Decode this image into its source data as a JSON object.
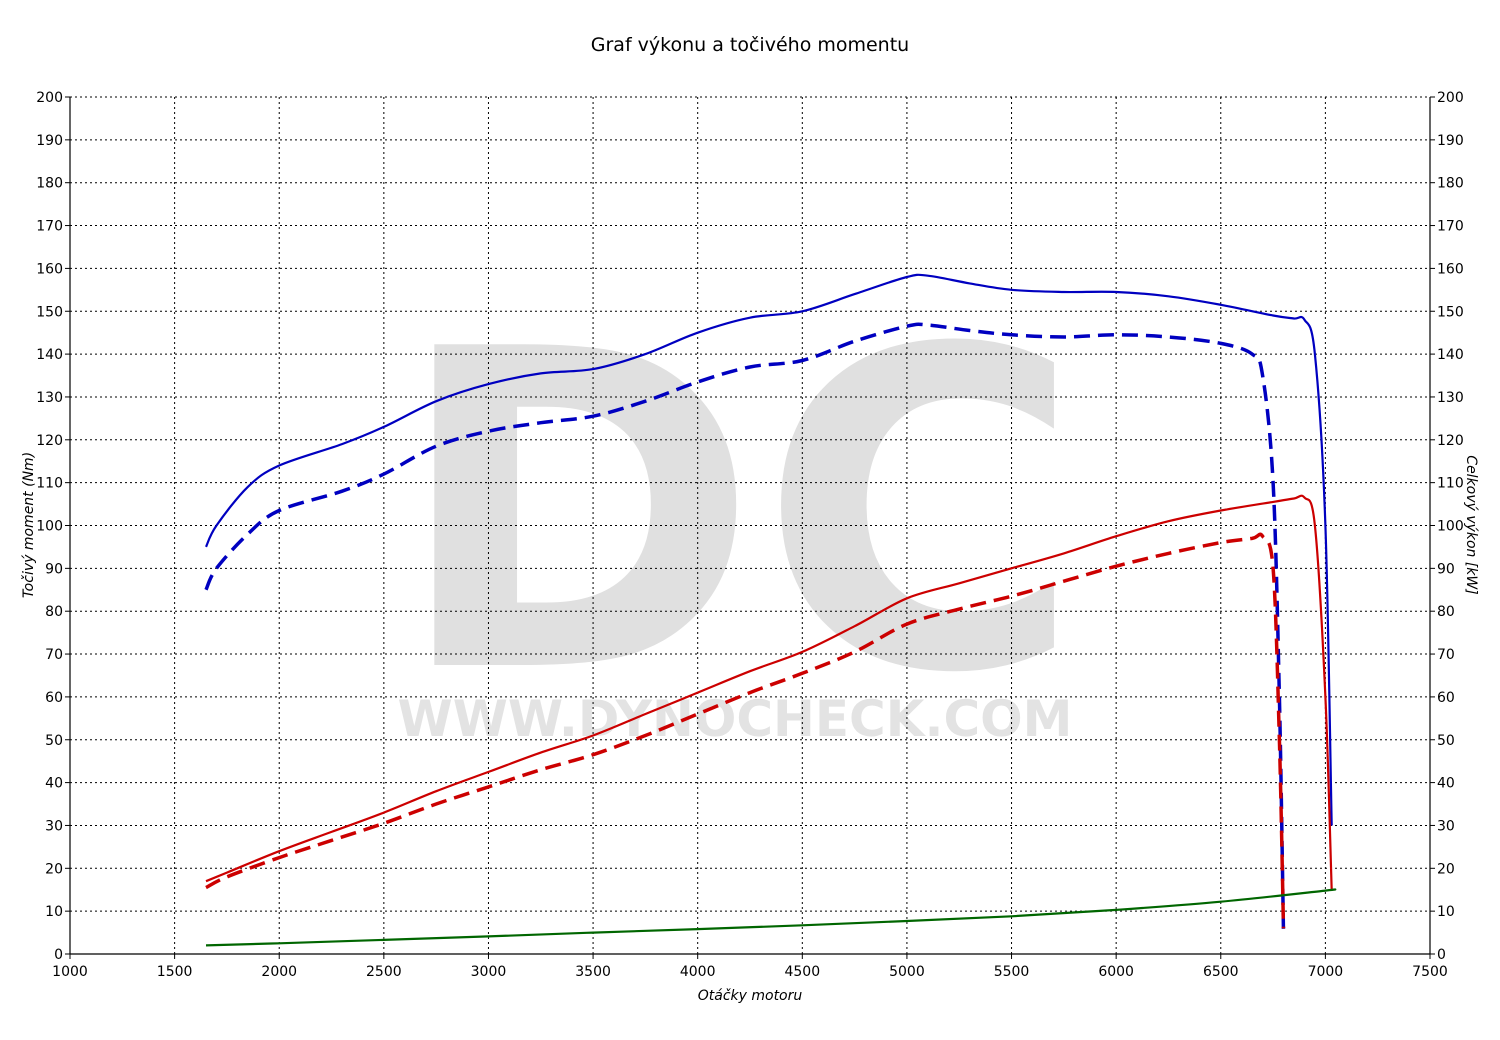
{
  "chart_data": {
    "type": "line",
    "title": "Graf výkonu a točivého momentu",
    "xlabel": "Otáčky motoru",
    "ylabel_left": "Točivý moment (Nm)",
    "ylabel_right": "Celkový výkon [kW]",
    "xlim": [
      1000,
      7500
    ],
    "ylim_left": [
      0,
      200
    ],
    "ylim_right": [
      0,
      200
    ],
    "x_ticks": [
      1000,
      1500,
      2000,
      2500,
      3000,
      3500,
      4000,
      4500,
      5000,
      5500,
      6000,
      6500,
      7000,
      7500
    ],
    "y_ticks": [
      0,
      10,
      20,
      30,
      40,
      50,
      60,
      70,
      80,
      90,
      100,
      110,
      120,
      130,
      140,
      150,
      160,
      170,
      180,
      190,
      200
    ],
    "grid": true,
    "watermark": {
      "logo": "DC",
      "url": "WWW.DYNOCHECK.COM"
    },
    "series": [
      {
        "color": "#0000c0",
        "dash": "solid",
        "x": [
          1650,
          1700,
          1850,
          2000,
          2300,
          2500,
          2750,
          3000,
          3250,
          3500,
          3750,
          4000,
          4250,
          4500,
          4750,
          5000,
          5100,
          5300,
          5500,
          5750,
          6000,
          6250,
          6500,
          6750,
          6850,
          6900,
          6950,
          7000,
          7030
        ],
        "values": [
          95,
          100,
          109,
          114,
          119,
          123,
          129,
          133,
          135.5,
          136.5,
          140,
          145,
          148.5,
          150,
          154,
          158,
          158.3,
          156.5,
          155,
          154.5,
          154.5,
          153.5,
          151.5,
          149,
          148.3,
          148,
          140,
          100,
          30
        ]
      },
      {
        "color": "#0000c0",
        "dash": "dashed",
        "x": [
          1650,
          1700,
          1850,
          2000,
          2300,
          2500,
          2750,
          3000,
          3250,
          3500,
          3750,
          4000,
          4250,
          4500,
          4750,
          5000,
          5100,
          5300,
          5500,
          5750,
          6000,
          6250,
          6500,
          6650,
          6700,
          6750,
          6780,
          6800
        ],
        "values": [
          85,
          90,
          98,
          103.5,
          108,
          112,
          118.5,
          122,
          124,
          125.5,
          129,
          133.5,
          137,
          138.5,
          143,
          146.5,
          146.8,
          145.5,
          144.5,
          144,
          144.5,
          144,
          142.5,
          140,
          135,
          110,
          60,
          5
        ]
      },
      {
        "color": "#cc0000",
        "dash": "solid",
        "x": [
          1650,
          1750,
          2000,
          2250,
          2500,
          2750,
          3000,
          3250,
          3500,
          3750,
          4000,
          4250,
          4500,
          4750,
          5000,
          5250,
          5500,
          5750,
          6000,
          6250,
          6500,
          6750,
          6850,
          6900,
          6950,
          7000,
          7030
        ],
        "values": [
          17,
          19,
          24,
          28.5,
          33,
          38,
          42.5,
          47,
          51,
          56,
          61,
          66,
          70.5,
          76.5,
          83,
          86.5,
          90,
          93.5,
          97.5,
          101,
          103.5,
          105.5,
          106.3,
          106.5,
          100,
          60,
          15
        ]
      },
      {
        "color": "#cc0000",
        "dash": "dashed",
        "x": [
          1650,
          1750,
          2000,
          2250,
          2500,
          2750,
          3000,
          3250,
          3500,
          3750,
          4000,
          4250,
          4500,
          4750,
          5000,
          5250,
          5500,
          5750,
          6000,
          6250,
          6500,
          6650,
          6700,
          6750,
          6780,
          6800
        ],
        "values": [
          15.5,
          18,
          22.5,
          26.5,
          30.5,
          35,
          39,
          43,
          46.5,
          51,
          56,
          61,
          65.5,
          70.5,
          77,
          80.5,
          83.5,
          87,
          90.5,
          93.5,
          96,
          97,
          97.5,
          90,
          50,
          6
        ]
      },
      {
        "color": "#006600",
        "dash": "solid",
        "x": [
          1650,
          2000,
          2500,
          3000,
          3500,
          4000,
          4500,
          5000,
          5500,
          6000,
          6500,
          7000,
          7030
        ],
        "values": [
          2,
          2.5,
          3.3,
          4.1,
          5,
          5.8,
          6.7,
          7.7,
          8.8,
          10.3,
          12.2,
          14.8,
          15
        ]
      }
    ]
  }
}
